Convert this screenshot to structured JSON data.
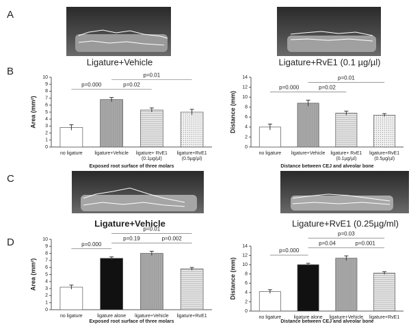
{
  "panel_labels": [
    "A",
    "B",
    "C",
    "D"
  ],
  "photo_captions": [
    "Ligature+Vehicle",
    "Ligature+RvE1 (0.1 µg/µl)",
    "Ligature+Vehicle",
    "Ligature+RvE1 (0.25µg/ml)"
  ],
  "chart_data": [
    {
      "type": "bar",
      "y_label": "Area (mm²)",
      "x_label": "Exposed root surface of three molars",
      "categories": [
        [
          "no ligature"
        ],
        [
          "ligature+Vehicle"
        ],
        [
          "ligature+ RvE1",
          "(0.1µg/µl)"
        ],
        [
          "ligature+RvE1",
          "(0.5µg/µl)"
        ]
      ],
      "values": [
        2.8,
        6.8,
        5.3,
        5.0
      ],
      "errors": [
        0.4,
        0.3,
        0.3,
        0.4
      ],
      "fills": [
        "white",
        "gray",
        "hstripe",
        "dot"
      ],
      "ylim": [
        0,
        10
      ],
      "yticks": [
        0,
        1,
        2,
        3,
        4,
        5,
        6,
        7,
        8,
        9,
        10
      ],
      "brackets": [
        {
          "label": "p=0.000",
          "between": [
            0,
            1
          ]
        },
        {
          "label": "p=0.02",
          "between": [
            1,
            2
          ]
        },
        {
          "label": "p=0.01",
          "between": [
            1,
            3
          ]
        }
      ]
    },
    {
      "type": "bar",
      "y_label": "Distance (mm)",
      "x_label": "Distance between CEJ and alveolar bone",
      "categories": [
        [
          "no ligature"
        ],
        [
          "ligature+Vehicle"
        ],
        [
          "ligature+ RvE1",
          "(0.1µg/µl)"
        ],
        [
          "ligature+RvE1",
          "(0.5µg/µl)"
        ]
      ],
      "values": [
        4.0,
        8.8,
        6.8,
        6.4
      ],
      "errors": [
        0.6,
        0.6,
        0.4,
        0.3
      ],
      "fills": [
        "white",
        "gray",
        "hstripe",
        "dot"
      ],
      "ylim": [
        0,
        14
      ],
      "yticks": [
        0,
        2,
        4,
        6,
        8,
        10,
        12,
        14
      ],
      "brackets": [
        {
          "label": "p=0.000",
          "between": [
            0,
            1
          ]
        },
        {
          "label": "p=0.02",
          "between": [
            1,
            2
          ]
        },
        {
          "label": "p=0.01",
          "between": [
            1,
            3
          ]
        }
      ]
    },
    {
      "type": "bar",
      "y_label": "Area (mm²)",
      "x_label": "Exposed root surface of three molars",
      "categories": [
        [
          "no ligature"
        ],
        [
          "ligature alone"
        ],
        [
          "ligature+Vehicle"
        ],
        [
          "ligature+RvE1"
        ]
      ],
      "values": [
        3.2,
        7.3,
        8.0,
        5.8
      ],
      "errors": [
        0.3,
        0.2,
        0.3,
        0.2
      ],
      "fills": [
        "white",
        "black",
        "gray",
        "hstripe"
      ],
      "ylim": [
        0,
        10
      ],
      "yticks": [
        0,
        1,
        2,
        3,
        4,
        5,
        6,
        7,
        8,
        9,
        10
      ],
      "brackets": [
        {
          "label": "p=0.000",
          "between": [
            0,
            1
          ]
        },
        {
          "label": "p=0.19",
          "between": [
            1,
            2
          ]
        },
        {
          "label": "p=0.002",
          "between": [
            2,
            3
          ]
        },
        {
          "label": "p=0.01",
          "between": [
            1,
            3
          ]
        }
      ]
    },
    {
      "type": "bar",
      "y_label": "Distance (mm)",
      "x_label": "Distance between CEJ and alveolar bone",
      "categories": [
        [
          "no ligature"
        ],
        [
          "ligature alone"
        ],
        [
          "ligature+Vehicle"
        ],
        [
          "ligature+RvE1"
        ]
      ],
      "values": [
        4.2,
        10.0,
        11.4,
        8.2
      ],
      "errors": [
        0.4,
        0.3,
        0.5,
        0.3
      ],
      "fills": [
        "white",
        "black",
        "gray",
        "hstripe"
      ],
      "ylim": [
        0,
        14
      ],
      "yticks": [
        0,
        2,
        4,
        6,
        8,
        10,
        12,
        14
      ],
      "brackets": [
        {
          "label": "p=0.000",
          "between": [
            0,
            1
          ]
        },
        {
          "label": "p=0.04",
          "between": [
            1,
            2
          ]
        },
        {
          "label": "p=0.001",
          "between": [
            2,
            3
          ]
        },
        {
          "label": "p=0.03",
          "between": [
            1,
            3
          ]
        }
      ]
    }
  ]
}
